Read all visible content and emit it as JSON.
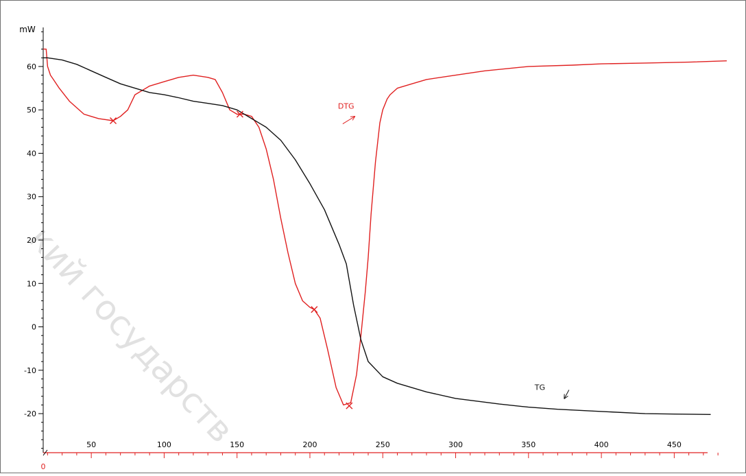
{
  "chart_data": {
    "type": "line",
    "y_unit_label": "mW",
    "x_origin_label": "0",
    "xlim": [
      17,
      487
    ],
    "ylim": [
      -29,
      69
    ],
    "x_ticks": [
      50,
      100,
      150,
      200,
      250,
      300,
      350,
      400,
      450
    ],
    "y_ticks": [
      60,
      50,
      40,
      30,
      20,
      10,
      0,
      -10,
      -20
    ],
    "grid": false,
    "colors": {
      "DTG": "#e02020",
      "TG": "#111111",
      "axis": "#000000",
      "x_axis": "#e02020"
    },
    "series": [
      {
        "name": "DTG",
        "x": [
          17,
          19,
          20,
          22,
          24,
          28,
          35,
          45,
          55,
          65,
          70,
          75,
          80,
          90,
          100,
          110,
          120,
          130,
          135,
          140,
          145,
          150,
          155,
          160,
          165,
          170,
          175,
          180,
          185,
          190,
          195,
          200,
          203,
          207,
          212,
          218,
          223,
          228,
          232,
          235,
          238,
          240,
          242,
          245,
          248,
          250,
          253,
          255,
          260,
          270,
          280,
          300,
          320,
          350,
          380,
          400,
          430,
          460,
          486
        ],
        "y": [
          64,
          64,
          60,
          58,
          57,
          55,
          52,
          49,
          48,
          47.5,
          48.5,
          50,
          53.5,
          55.5,
          56.5,
          57.5,
          58,
          57.5,
          57,
          54,
          50,
          49,
          49,
          48.5,
          46,
          41,
          34,
          25,
          17,
          10,
          6,
          4.5,
          4,
          2,
          -5,
          -14,
          -18,
          -17.5,
          -11,
          -2,
          8,
          16,
          26,
          38,
          47,
          50,
          52.5,
          53.5,
          55,
          56,
          57,
          58,
          59,
          60,
          60.3,
          60.6,
          60.8,
          61,
          61.3
        ]
      },
      {
        "name": "TG",
        "x": [
          17,
          20,
          30,
          40,
          50,
          60,
          70,
          80,
          90,
          100,
          110,
          120,
          130,
          140,
          150,
          160,
          165,
          170,
          180,
          190,
          200,
          210,
          220,
          225,
          230,
          235,
          240,
          250,
          260,
          280,
          300,
          330,
          350,
          370,
          400,
          430,
          450,
          475
        ],
        "y": [
          62,
          62,
          61.5,
          60.5,
          59,
          57.5,
          56,
          55,
          54,
          53.5,
          52.8,
          52,
          51.5,
          51,
          50,
          48,
          47,
          46,
          43,
          38.5,
          33,
          27,
          19,
          14.5,
          5,
          -3,
          -8,
          -11.5,
          -13,
          -15,
          -16.5,
          -17.8,
          -18.5,
          -19,
          -19.5,
          -20,
          -20.1,
          -20.2
        ]
      }
    ],
    "annotations": [
      {
        "text": "DTG",
        "x": 231,
        "y": 49
      },
      {
        "text": "TG",
        "x": 366,
        "y": -15.8
      }
    ],
    "markers": [
      {
        "x": 65,
        "y": 47.5
      },
      {
        "x": 152,
        "y": 49
      },
      {
        "x": 203,
        "y": 4
      },
      {
        "x": 227,
        "y": -18.2
      }
    ]
  },
  "watermark": "кий государств"
}
